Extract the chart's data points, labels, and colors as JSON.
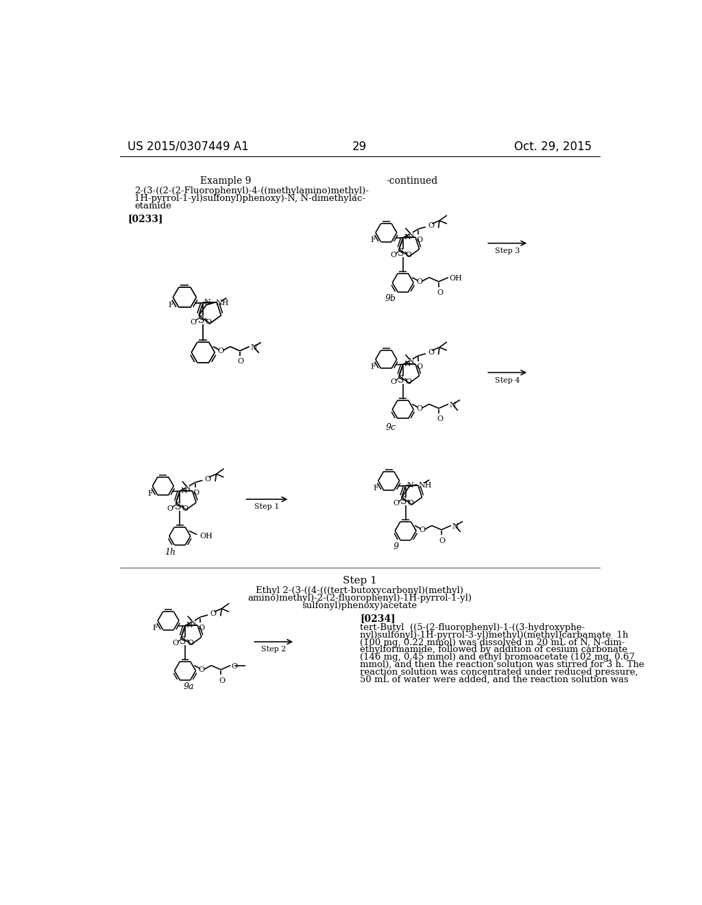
{
  "page_number": "29",
  "header_left": "US 2015/0307449 A1",
  "header_right": "Oct. 29, 2015",
  "background_color": "#ffffff",
  "text_color": "#000000",
  "example_title": "Example 9",
  "subtitle_line1": "2-(3-((2-(2-Fluorophenyl)-4-((methylamino)methyl)-",
  "subtitle_line2": "1H-pyrrol-1-yl)sulfonyl)phenoxy)-N, N-dimethylac-",
  "subtitle_line3": "etamide",
  "para_0233": "[0233]",
  "continued": "-continued",
  "step1_title": "Step 1",
  "step1_chem_line1": "Ethyl 2-(3-((4-(((tert-butoxycarbonyl)(methyl)",
  "step1_chem_line2": "amino)methyl)-2-(2-fluorophenyl)-1H-pyrrol-1-yl)",
  "step1_chem_line3": "sulfonyl)phenoxy)acetate",
  "para_0234": "[0234]",
  "body_lines": [
    "tert-Butyl  ((5-(2-fluorophenyl)-1-((3-hydroxyphe-",
    "nyl)sulfonyl)-1H-pyrrol-3-yl)methyl)(methyl)carbamate  1h",
    "(100 mg, 0.22 mmol) was dissolved in 20 mL of N, N-dim-",
    "ethylformamide, followed by addition of cesium carbonate",
    "(146 mg, 0.45 mmol) and ethyl bromoacetate (102 mg, 0.67",
    "mmol), and then the reaction solution was stirred for 3 h. The",
    "reaction solution was concentrated under reduced pressure,",
    "50 mL of water were added, and the reaction solution was"
  ]
}
